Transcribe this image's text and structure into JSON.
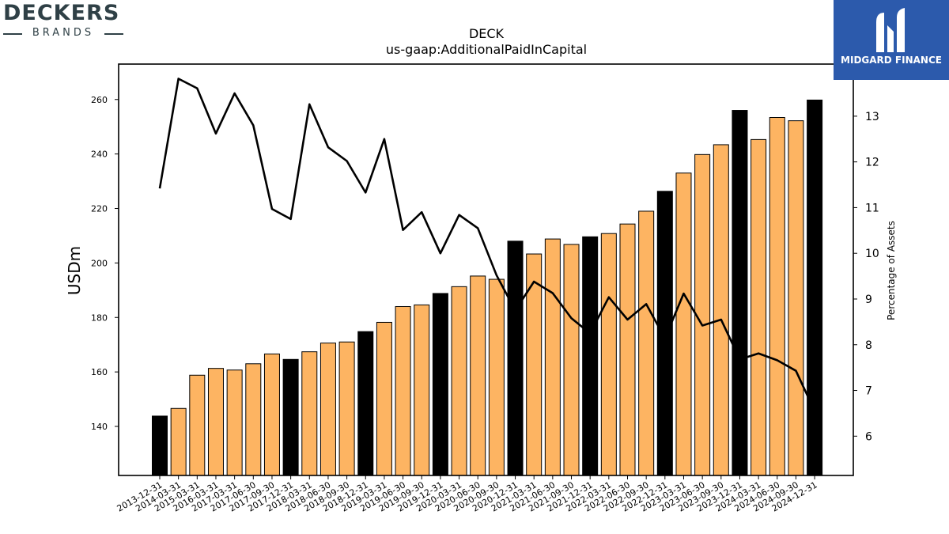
{
  "logo_left": {
    "name": "DECKERS",
    "sub": "BRANDS"
  },
  "logo_right": {
    "name": "MIDGARD FINANCE"
  },
  "chart_data": {
    "type": "bar",
    "title": "DECK",
    "subtitle": "us-gaap:AdditionalPaidInCapital",
    "ylabel": "USDm",
    "y2label": "Percentage of Assets",
    "ylim": [
      122,
      273
    ],
    "y2lim": [
      5.14,
      14.14
    ],
    "yticks": [
      140,
      160,
      180,
      200,
      220,
      240,
      260
    ],
    "y2ticks": [
      6,
      7,
      8,
      9,
      10,
      11,
      12,
      13
    ],
    "colors": {
      "annual": "#000000",
      "quarter": "#fdb462",
      "line": "#000000"
    },
    "categories": [
      "2013-12-31",
      "2014-03-31",
      "2015-03-31",
      "2016-03-31",
      "2017-03-31",
      "2017-06-30",
      "2017-09-30",
      "2017-12-31",
      "2018-03-31",
      "2018-06-30",
      "2018-09-30",
      "2018-12-31",
      "2019-03-31",
      "2019-06-30",
      "2019-09-30",
      "2019-12-31",
      "2020-03-31",
      "2020-06-30",
      "2020-09-30",
      "2020-12-31",
      "2021-03-31",
      "2021-06-30",
      "2021-09-30",
      "2021-12-31",
      "2022-03-31",
      "2022-06-30",
      "2022-09-30",
      "2022-12-31",
      "2023-03-31",
      "2023-06-30",
      "2023-09-30",
      "2023-12-31",
      "2024-03-31",
      "2024-06-30",
      "2024-09-30",
      "2024-12-31"
    ],
    "values": [
      143.8,
      146.6,
      158.8,
      161.3,
      160.7,
      163.0,
      166.6,
      164.6,
      167.4,
      170.6,
      171.0,
      174.8,
      178.2,
      184.0,
      184.6,
      188.8,
      191.3,
      195.2,
      194.0,
      208.0,
      203.3,
      208.8,
      206.8,
      209.6,
      210.8,
      214.3,
      219.0,
      226.3,
      233.0,
      239.8,
      243.4,
      256.0,
      245.3,
      253.4,
      252.2,
      259.8
    ],
    "annual": [
      true,
      false,
      false,
      false,
      false,
      false,
      false,
      true,
      false,
      false,
      false,
      true,
      false,
      false,
      false,
      true,
      false,
      false,
      false,
      true,
      false,
      false,
      false,
      true,
      false,
      false,
      false,
      true,
      false,
      false,
      false,
      true,
      false,
      false,
      false,
      true
    ],
    "pct_assets": [
      11.42,
      13.82,
      13.61,
      12.62,
      13.5,
      12.8,
      10.97,
      10.75,
      13.26,
      12.32,
      12.02,
      11.33,
      12.5,
      10.51,
      10.9,
      10.0,
      10.84,
      10.55,
      9.52,
      8.75,
      9.38,
      9.13,
      8.58,
      8.25,
      9.04,
      8.55,
      8.89,
      8.14,
      9.12,
      8.42,
      8.55,
      7.68,
      7.81,
      7.66,
      7.43,
      6.55
    ]
  }
}
